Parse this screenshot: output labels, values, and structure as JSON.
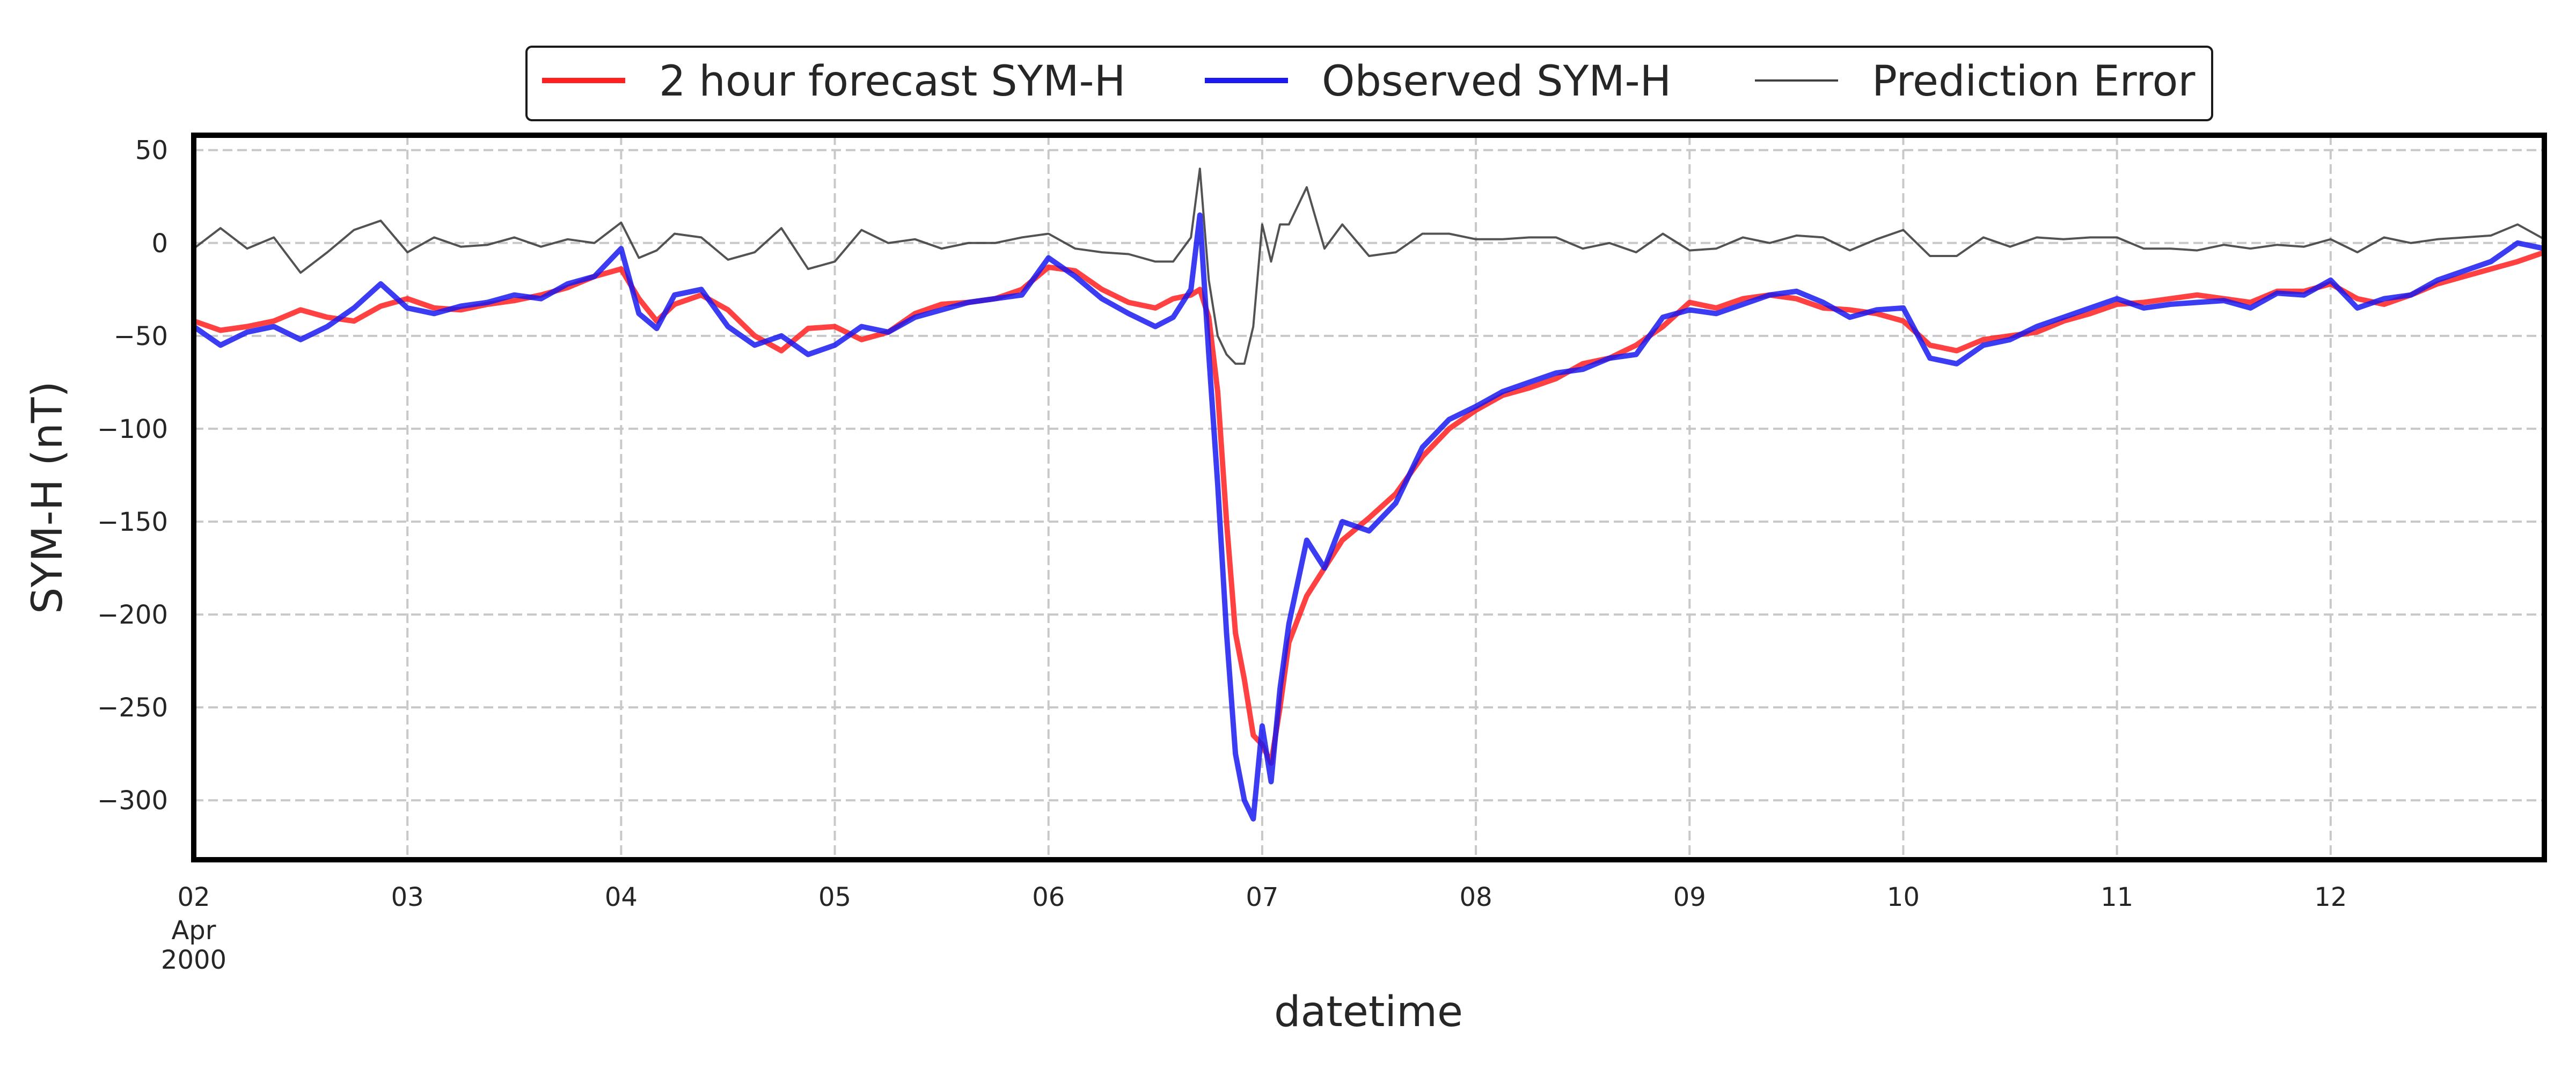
{
  "chart_data": {
    "type": "line",
    "xlabel": "datetime",
    "ylabel": "SYM-H (nT)",
    "ylim": [
      -332,
      58
    ],
    "xlim": [
      "2000-04-02T00:00",
      "2000-04-13T00:00"
    ],
    "yticks": [
      50,
      0,
      -50,
      -100,
      -150,
      -200,
      -250,
      -300
    ],
    "xticks": [
      {
        "date": "2000-04-02T00:00",
        "label": "02",
        "sub": [
          "Apr",
          "2000"
        ]
      },
      {
        "date": "2000-04-03T00:00",
        "label": "03"
      },
      {
        "date": "2000-04-04T00:00",
        "label": "04"
      },
      {
        "date": "2000-04-05T00:00",
        "label": "05"
      },
      {
        "date": "2000-04-06T00:00",
        "label": "06"
      },
      {
        "date": "2000-04-07T00:00",
        "label": "07"
      },
      {
        "date": "2000-04-08T00:00",
        "label": "08"
      },
      {
        "date": "2000-04-09T00:00",
        "label": "09"
      },
      {
        "date": "2000-04-10T00:00",
        "label": "10"
      },
      {
        "date": "2000-04-11T00:00",
        "label": "11"
      },
      {
        "date": "2000-04-12T00:00",
        "label": "12"
      }
    ],
    "grid": true,
    "legend_position": "top-center",
    "series": [
      {
        "name": "2 hour forecast SYM-H",
        "color": "#ff2020",
        "x": [
          "2000-04-02T00:00",
          "2000-04-02T03:00",
          "2000-04-02T06:00",
          "2000-04-02T09:00",
          "2000-04-02T12:00",
          "2000-04-02T15:00",
          "2000-04-02T18:00",
          "2000-04-02T21:00",
          "2000-04-03T00:00",
          "2000-04-03T03:00",
          "2000-04-03T06:00",
          "2000-04-03T09:00",
          "2000-04-03T12:00",
          "2000-04-03T15:00",
          "2000-04-03T18:00",
          "2000-04-03T21:00",
          "2000-04-04T00:00",
          "2000-04-04T02:00",
          "2000-04-04T04:00",
          "2000-04-04T06:00",
          "2000-04-04T09:00",
          "2000-04-04T12:00",
          "2000-04-04T15:00",
          "2000-04-04T18:00",
          "2000-04-04T21:00",
          "2000-04-05T00:00",
          "2000-04-05T03:00",
          "2000-04-05T06:00",
          "2000-04-05T09:00",
          "2000-04-05T12:00",
          "2000-04-05T15:00",
          "2000-04-05T18:00",
          "2000-04-05T21:00",
          "2000-04-06T00:00",
          "2000-04-06T03:00",
          "2000-04-06T06:00",
          "2000-04-06T09:00",
          "2000-04-06T12:00",
          "2000-04-06T14:00",
          "2000-04-06T16:00",
          "2000-04-06T17:00",
          "2000-04-06T18:00",
          "2000-04-06T19:00",
          "2000-04-06T20:00",
          "2000-04-06T21:00",
          "2000-04-06T22:00",
          "2000-04-06T23:00",
          "2000-04-07T00:00",
          "2000-04-07T01:00",
          "2000-04-07T02:00",
          "2000-04-07T03:00",
          "2000-04-07T05:00",
          "2000-04-07T07:00",
          "2000-04-07T09:00",
          "2000-04-07T12:00",
          "2000-04-07T15:00",
          "2000-04-07T18:00",
          "2000-04-07T21:00",
          "2000-04-08T00:00",
          "2000-04-08T03:00",
          "2000-04-08T06:00",
          "2000-04-08T09:00",
          "2000-04-08T12:00",
          "2000-04-08T15:00",
          "2000-04-08T18:00",
          "2000-04-08T21:00",
          "2000-04-09T00:00",
          "2000-04-09T03:00",
          "2000-04-09T06:00",
          "2000-04-09T09:00",
          "2000-04-09T12:00",
          "2000-04-09T15:00",
          "2000-04-09T18:00",
          "2000-04-09T21:00",
          "2000-04-10T00:00",
          "2000-04-10T03:00",
          "2000-04-10T06:00",
          "2000-04-10T09:00",
          "2000-04-10T12:00",
          "2000-04-10T15:00",
          "2000-04-10T18:00",
          "2000-04-10T21:00",
          "2000-04-11T00:00",
          "2000-04-11T03:00",
          "2000-04-11T06:00",
          "2000-04-11T09:00",
          "2000-04-11T12:00",
          "2000-04-11T15:00",
          "2000-04-11T18:00",
          "2000-04-11T21:00",
          "2000-04-12T00:00",
          "2000-04-12T03:00",
          "2000-04-12T06:00",
          "2000-04-12T09:00",
          "2000-04-12T12:00",
          "2000-04-12T15:00",
          "2000-04-12T18:00",
          "2000-04-12T21:00",
          "2000-04-13T00:00"
        ],
        "values": [
          -42,
          -47,
          -45,
          -42,
          -36,
          -40,
          -42,
          -34,
          -30,
          -35,
          -36,
          -33,
          -31,
          -28,
          -24,
          -18,
          -14,
          -30,
          -42,
          -33,
          -28,
          -36,
          -50,
          -58,
          -46,
          -45,
          -52,
          -48,
          -38,
          -33,
          -32,
          -30,
          -25,
          -13,
          -15,
          -25,
          -32,
          -35,
          -30,
          -28,
          -25,
          -40,
          -80,
          -150,
          -210,
          -235,
          -265,
          -270,
          -280,
          -250,
          -215,
          -190,
          -175,
          -160,
          -148,
          -135,
          -115,
          -100,
          -90,
          -82,
          -78,
          -73,
          -65,
          -62,
          -55,
          -45,
          -32,
          -35,
          -30,
          -28,
          -30,
          -35,
          -36,
          -38,
          -42,
          -55,
          -58,
          -52,
          -50,
          -48,
          -42,
          -38,
          -33,
          -32,
          -30,
          -28,
          -30,
          -32,
          -26,
          -26,
          -22,
          -30,
          -33,
          -28,
          -22,
          -18,
          -14,
          -10,
          -5
        ]
      },
      {
        "name": "Observed SYM-H",
        "color": "#1a1af0",
        "x": [
          "2000-04-02T00:00",
          "2000-04-02T03:00",
          "2000-04-02T06:00",
          "2000-04-02T09:00",
          "2000-04-02T12:00",
          "2000-04-02T15:00",
          "2000-04-02T18:00",
          "2000-04-02T21:00",
          "2000-04-03T00:00",
          "2000-04-03T03:00",
          "2000-04-03T06:00",
          "2000-04-03T09:00",
          "2000-04-03T12:00",
          "2000-04-03T15:00",
          "2000-04-03T18:00",
          "2000-04-03T21:00",
          "2000-04-04T00:00",
          "2000-04-04T02:00",
          "2000-04-04T04:00",
          "2000-04-04T06:00",
          "2000-04-04T09:00",
          "2000-04-04T12:00",
          "2000-04-04T15:00",
          "2000-04-04T18:00",
          "2000-04-04T21:00",
          "2000-04-05T00:00",
          "2000-04-05T03:00",
          "2000-04-05T06:00",
          "2000-04-05T09:00",
          "2000-04-05T12:00",
          "2000-04-05T15:00",
          "2000-04-05T18:00",
          "2000-04-05T21:00",
          "2000-04-06T00:00",
          "2000-04-06T03:00",
          "2000-04-06T06:00",
          "2000-04-06T09:00",
          "2000-04-06T12:00",
          "2000-04-06T14:00",
          "2000-04-06T16:00",
          "2000-04-06T17:00",
          "2000-04-06T18:00",
          "2000-04-06T19:00",
          "2000-04-06T20:00",
          "2000-04-06T21:00",
          "2000-04-06T22:00",
          "2000-04-06T23:00",
          "2000-04-07T00:00",
          "2000-04-07T01:00",
          "2000-04-07T02:00",
          "2000-04-07T03:00",
          "2000-04-07T05:00",
          "2000-04-07T07:00",
          "2000-04-07T09:00",
          "2000-04-07T12:00",
          "2000-04-07T15:00",
          "2000-04-07T18:00",
          "2000-04-07T21:00",
          "2000-04-08T00:00",
          "2000-04-08T03:00",
          "2000-04-08T06:00",
          "2000-04-08T09:00",
          "2000-04-08T12:00",
          "2000-04-08T15:00",
          "2000-04-08T18:00",
          "2000-04-08T21:00",
          "2000-04-09T00:00",
          "2000-04-09T03:00",
          "2000-04-09T06:00",
          "2000-04-09T09:00",
          "2000-04-09T12:00",
          "2000-04-09T15:00",
          "2000-04-09T18:00",
          "2000-04-09T21:00",
          "2000-04-10T00:00",
          "2000-04-10T03:00",
          "2000-04-10T06:00",
          "2000-04-10T09:00",
          "2000-04-10T12:00",
          "2000-04-10T15:00",
          "2000-04-10T18:00",
          "2000-04-10T21:00",
          "2000-04-11T00:00",
          "2000-04-11T03:00",
          "2000-04-11T06:00",
          "2000-04-11T09:00",
          "2000-04-11T12:00",
          "2000-04-11T15:00",
          "2000-04-11T18:00",
          "2000-04-11T21:00",
          "2000-04-12T00:00",
          "2000-04-12T03:00",
          "2000-04-12T06:00",
          "2000-04-12T09:00",
          "2000-04-12T12:00",
          "2000-04-12T15:00",
          "2000-04-12T18:00",
          "2000-04-12T21:00",
          "2000-04-13T00:00"
        ],
        "values": [
          -45,
          -55,
          -48,
          -45,
          -52,
          -45,
          -35,
          -22,
          -35,
          -38,
          -34,
          -32,
          -28,
          -30,
          -22,
          -18,
          -3,
          -38,
          -46,
          -28,
          -25,
          -45,
          -55,
          -50,
          -60,
          -55,
          -45,
          -48,
          -40,
          -36,
          -32,
          -30,
          -28,
          -8,
          -18,
          -30,
          -38,
          -45,
          -40,
          -25,
          15,
          -60,
          -130,
          -210,
          -275,
          -300,
          -310,
          -260,
          -290,
          -240,
          -205,
          -160,
          -175,
          -150,
          -155,
          -140,
          -110,
          -95,
          -88,
          -80,
          -75,
          -70,
          -68,
          -62,
          -60,
          -40,
          -36,
          -38,
          -33,
          -28,
          -26,
          -32,
          -40,
          -36,
          -35,
          -62,
          -65,
          -55,
          -52,
          -45,
          -40,
          -35,
          -30,
          -35,
          -33,
          -32,
          -31,
          -35,
          -27,
          -28,
          -20,
          -35,
          -30,
          -28,
          -20,
          -15,
          -10,
          0,
          -3
        ]
      },
      {
        "name": "Prediction Error",
        "color": "#404040",
        "x": [
          "2000-04-02T00:00",
          "2000-04-02T03:00",
          "2000-04-02T06:00",
          "2000-04-02T09:00",
          "2000-04-02T12:00",
          "2000-04-02T15:00",
          "2000-04-02T18:00",
          "2000-04-02T21:00",
          "2000-04-03T00:00",
          "2000-04-03T03:00",
          "2000-04-03T06:00",
          "2000-04-03T09:00",
          "2000-04-03T12:00",
          "2000-04-03T15:00",
          "2000-04-03T18:00",
          "2000-04-03T21:00",
          "2000-04-04T00:00",
          "2000-04-04T02:00",
          "2000-04-04T04:00",
          "2000-04-04T06:00",
          "2000-04-04T09:00",
          "2000-04-04T12:00",
          "2000-04-04T15:00",
          "2000-04-04T18:00",
          "2000-04-04T21:00",
          "2000-04-05T00:00",
          "2000-04-05T03:00",
          "2000-04-05T06:00",
          "2000-04-05T09:00",
          "2000-04-05T12:00",
          "2000-04-05T15:00",
          "2000-04-05T18:00",
          "2000-04-05T21:00",
          "2000-04-06T00:00",
          "2000-04-06T03:00",
          "2000-04-06T06:00",
          "2000-04-06T09:00",
          "2000-04-06T12:00",
          "2000-04-06T14:00",
          "2000-04-06T16:00",
          "2000-04-06T17:00",
          "2000-04-06T18:00",
          "2000-04-06T19:00",
          "2000-04-06T20:00",
          "2000-04-06T21:00",
          "2000-04-06T22:00",
          "2000-04-06T23:00",
          "2000-04-07T00:00",
          "2000-04-07T01:00",
          "2000-04-07T02:00",
          "2000-04-07T03:00",
          "2000-04-07T05:00",
          "2000-04-07T07:00",
          "2000-04-07T09:00",
          "2000-04-07T12:00",
          "2000-04-07T15:00",
          "2000-04-07T18:00",
          "2000-04-07T21:00",
          "2000-04-08T00:00",
          "2000-04-08T03:00",
          "2000-04-08T06:00",
          "2000-04-08T09:00",
          "2000-04-08T12:00",
          "2000-04-08T15:00",
          "2000-04-08T18:00",
          "2000-04-08T21:00",
          "2000-04-09T00:00",
          "2000-04-09T03:00",
          "2000-04-09T06:00",
          "2000-04-09T09:00",
          "2000-04-09T12:00",
          "2000-04-09T15:00",
          "2000-04-09T18:00",
          "2000-04-09T21:00",
          "2000-04-10T00:00",
          "2000-04-10T03:00",
          "2000-04-10T06:00",
          "2000-04-10T09:00",
          "2000-04-10T12:00",
          "2000-04-10T15:00",
          "2000-04-10T18:00",
          "2000-04-10T21:00",
          "2000-04-11T00:00",
          "2000-04-11T03:00",
          "2000-04-11T06:00",
          "2000-04-11T09:00",
          "2000-04-11T12:00",
          "2000-04-11T15:00",
          "2000-04-11T18:00",
          "2000-04-11T21:00",
          "2000-04-12T00:00",
          "2000-04-12T03:00",
          "2000-04-12T06:00",
          "2000-04-12T09:00",
          "2000-04-12T12:00",
          "2000-04-12T15:00",
          "2000-04-12T18:00",
          "2000-04-12T21:00",
          "2000-04-13T00:00"
        ],
        "values": [
          -3,
          8,
          -3,
          3,
          -16,
          -5,
          7,
          12,
          -5,
          3,
          -2,
          -1,
          3,
          -2,
          2,
          0,
          11,
          -8,
          -4,
          5,
          3,
          -9,
          -5,
          8,
          -14,
          -10,
          7,
          0,
          2,
          -3,
          0,
          0,
          3,
          5,
          -3,
          -5,
          -6,
          -10,
          -10,
          3,
          40,
          -20,
          -50,
          -60,
          -65,
          -65,
          -45,
          10,
          -10,
          10,
          10,
          30,
          -3,
          10,
          -7,
          -5,
          5,
          5,
          2,
          2,
          3,
          3,
          -3,
          0,
          -5,
          5,
          -4,
          -3,
          3,
          0,
          4,
          3,
          -4,
          2,
          7,
          -7,
          -7,
          3,
          -2,
          3,
          2,
          3,
          3,
          -3,
          -3,
          -4,
          -1,
          -3,
          -1,
          -2,
          2,
          -5,
          3,
          0,
          2,
          3,
          4,
          10,
          2
        ]
      }
    ]
  }
}
